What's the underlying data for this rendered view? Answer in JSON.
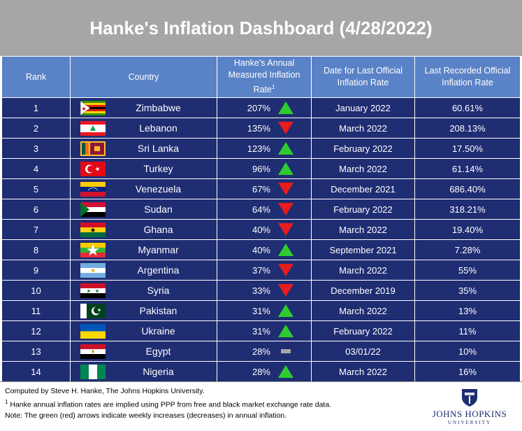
{
  "title": "Hanke's Inflation Dashboard (4/28/2022)",
  "headers": {
    "rank": "Rank",
    "country": "Country",
    "hanke": "Hanke's Annual Measured Inflation Rate",
    "hanke_sup": "1",
    "date": "Date for Last Official Inflation Rate",
    "official": "Last Recorded Official Inflation Rate"
  },
  "rows": [
    {
      "rank": "1",
      "country": "Zimbabwe",
      "hanke": "207%",
      "trend": "up",
      "date": "January 2022",
      "official": "60.61%"
    },
    {
      "rank": "2",
      "country": "Lebanon",
      "hanke": "135%",
      "trend": "down",
      "date": "March 2022",
      "official": "208.13%"
    },
    {
      "rank": "3",
      "country": "Sri Lanka",
      "hanke": "123%",
      "trend": "up",
      "date": "February 2022",
      "official": "17.50%"
    },
    {
      "rank": "4",
      "country": "Turkey",
      "hanke": "96%",
      "trend": "up",
      "date": "March 2022",
      "official": "61.14%"
    },
    {
      "rank": "5",
      "country": "Venezuela",
      "hanke": "67%",
      "trend": "down",
      "date": "December 2021",
      "official": "686.40%"
    },
    {
      "rank": "6",
      "country": "Sudan",
      "hanke": "64%",
      "trend": "down",
      "date": "February 2022",
      "official": "318.21%"
    },
    {
      "rank": "7",
      "country": "Ghana",
      "hanke": "40%",
      "trend": "down",
      "date": "March 2022",
      "official": "19.40%"
    },
    {
      "rank": "8",
      "country": "Myanmar",
      "hanke": "40%",
      "trend": "up",
      "date": "September 2021",
      "official": "7.28%"
    },
    {
      "rank": "9",
      "country": "Argentina",
      "hanke": "37%",
      "trend": "down",
      "date": "March 2022",
      "official": "55%"
    },
    {
      "rank": "10",
      "country": "Syria",
      "hanke": "33%",
      "trend": "down",
      "date": "December 2019",
      "official": "35%"
    },
    {
      "rank": "11",
      "country": "Pakistan",
      "hanke": "31%",
      "trend": "up",
      "date": "March 2022",
      "official": "13%"
    },
    {
      "rank": "12",
      "country": "Ukraine",
      "hanke": "31%",
      "trend": "up",
      "date": "February 2022",
      "official": "11%"
    },
    {
      "rank": "13",
      "country": "Egypt",
      "hanke": "28%",
      "trend": "flat",
      "date": "03/01/22",
      "official": "10%"
    },
    {
      "rank": "14",
      "country": "Nigeria",
      "hanke": "28%",
      "trend": "up",
      "date": "March 2022",
      "official": "16%"
    }
  ],
  "footer": {
    "line1": "Computed by Steve H. Hanke, The Johns Hopkins University.",
    "line2_sup": "1",
    "line2": " Hanke annual inflation rates are implied using PPP from free and black market exchange rate data.",
    "line3": "Note: The green (red) arrows indicate weekly increases (decreases) in annual inflation.",
    "logo_name": "JOHNS HOPKINS",
    "logo_sub": "UNIVERSITY"
  },
  "colors": {
    "title_bg": "#a6a6a6",
    "header_bg": "#5a82c6",
    "row_bg": "#1f2d72",
    "up_arrow": "#2ecc2e",
    "down_arrow": "#e81c1c",
    "flat_marker": "#a6a6a6"
  }
}
